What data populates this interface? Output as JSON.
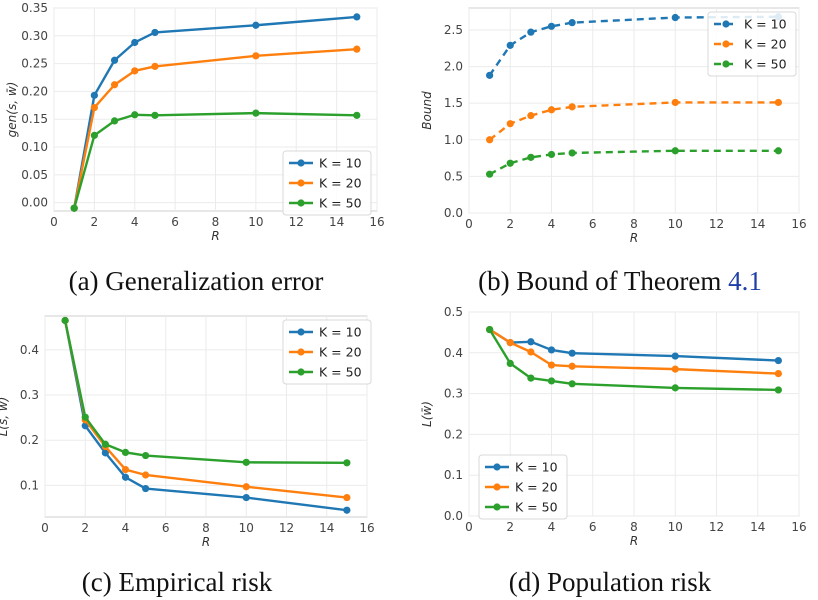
{
  "chart_data": [
    {
      "id": "a",
      "type": "line",
      "caption": "(a) Generalization error",
      "xlabel": "R",
      "ylabel": "gen(s, w̄)",
      "xlim": [
        0,
        16
      ],
      "ylim": [
        -0.015,
        0.35
      ],
      "xticks": [
        0,
        2,
        4,
        6,
        8,
        10,
        12,
        14,
        16
      ],
      "yticks": [
        "0.00",
        "0.05",
        "0.10",
        "0.15",
        "0.20",
        "0.25",
        "0.30",
        "0.35"
      ],
      "dashed": false,
      "legend": "bottom-right",
      "x": [
        1,
        2,
        3,
        4,
        5,
        10,
        15
      ],
      "series": [
        {
          "name": "K = 10",
          "color": "#1f77b4",
          "values": [
            -0.01,
            0.193,
            0.256,
            0.288,
            0.306,
            0.319,
            0.334
          ]
        },
        {
          "name": "K = 20",
          "color": "#ff7f0e",
          "values": [
            -0.01,
            0.171,
            0.212,
            0.237,
            0.245,
            0.264,
            0.276
          ]
        },
        {
          "name": "K = 50",
          "color": "#2ca02c",
          "values": [
            -0.01,
            0.121,
            0.147,
            0.158,
            0.157,
            0.161,
            0.157
          ]
        }
      ]
    },
    {
      "id": "b",
      "type": "line",
      "caption": "(b) Bound of Theorem",
      "caption_ref": "4.1",
      "xlabel": "R",
      "ylabel": "Bound",
      "xlim": [
        0,
        16
      ],
      "ylim": [
        0,
        2.8
      ],
      "xticks": [
        0,
        2,
        4,
        6,
        8,
        10,
        12,
        14,
        16
      ],
      "yticks": [
        "0.0",
        "0.5",
        "1.0",
        "1.5",
        "2.0",
        "2.5"
      ],
      "dashed": true,
      "legend": "top-right",
      "x": [
        1,
        2,
        3,
        4,
        5,
        10,
        15
      ],
      "series": [
        {
          "name": "K = 10",
          "color": "#1f77b4",
          "values": [
            1.88,
            2.29,
            2.47,
            2.55,
            2.6,
            2.67,
            2.68
          ]
        },
        {
          "name": "K = 20",
          "color": "#ff7f0e",
          "values": [
            1.0,
            1.22,
            1.33,
            1.41,
            1.45,
            1.51,
            1.51
          ]
        },
        {
          "name": "K = 50",
          "color": "#2ca02c",
          "values": [
            0.53,
            0.68,
            0.76,
            0.8,
            0.82,
            0.85,
            0.85
          ]
        }
      ]
    },
    {
      "id": "c",
      "type": "line",
      "caption": "(c) Empirical risk",
      "xlabel": "R",
      "ylabel": "L̂(s, w̄)",
      "xlim": [
        0,
        16
      ],
      "ylim": [
        0.03,
        0.475
      ],
      "xticks": [
        0,
        2,
        4,
        6,
        8,
        10,
        12,
        14,
        16
      ],
      "yticks": [
        "0.1",
        "0.2",
        "0.3",
        "0.4"
      ],
      "dashed": false,
      "legend": "top-right",
      "x": [
        1,
        2,
        3,
        4,
        5,
        10,
        15
      ],
      "series": [
        {
          "name": "K = 10",
          "color": "#1f77b4",
          "values": [
            0.465,
            0.232,
            0.172,
            0.118,
            0.093,
            0.073,
            0.045
          ]
        },
        {
          "name": "K = 20",
          "color": "#ff7f0e",
          "values": [
            0.465,
            0.245,
            0.186,
            0.135,
            0.123,
            0.097,
            0.073
          ]
        },
        {
          "name": "K = 50",
          "color": "#2ca02c",
          "values": [
            0.465,
            0.251,
            0.191,
            0.173,
            0.166,
            0.151,
            0.15
          ]
        }
      ]
    },
    {
      "id": "d",
      "type": "line",
      "caption": "(d) Population risk",
      "xlabel": "R",
      "ylabel": "L(w̄)",
      "xlim": [
        0,
        16
      ],
      "ylim": [
        0,
        0.5
      ],
      "xticks": [
        0,
        2,
        4,
        6,
        8,
        10,
        12,
        14,
        16
      ],
      "yticks": [
        "0.0",
        "0.1",
        "0.2",
        "0.3",
        "0.4",
        "0.5"
      ],
      "dashed": false,
      "legend": "bottom-left",
      "x": [
        1,
        2,
        3,
        4,
        5,
        10,
        15
      ],
      "series": [
        {
          "name": "K = 10",
          "color": "#1f77b4",
          "values": [
            0.457,
            0.425,
            0.427,
            0.407,
            0.399,
            0.392,
            0.381
          ]
        },
        {
          "name": "K = 20",
          "color": "#ff7f0e",
          "values": [
            0.457,
            0.425,
            0.402,
            0.37,
            0.367,
            0.36,
            0.349
          ]
        },
        {
          "name": "K = 50",
          "color": "#2ca02c",
          "values": [
            0.457,
            0.374,
            0.338,
            0.331,
            0.324,
            0.314,
            0.309
          ]
        }
      ]
    }
  ]
}
